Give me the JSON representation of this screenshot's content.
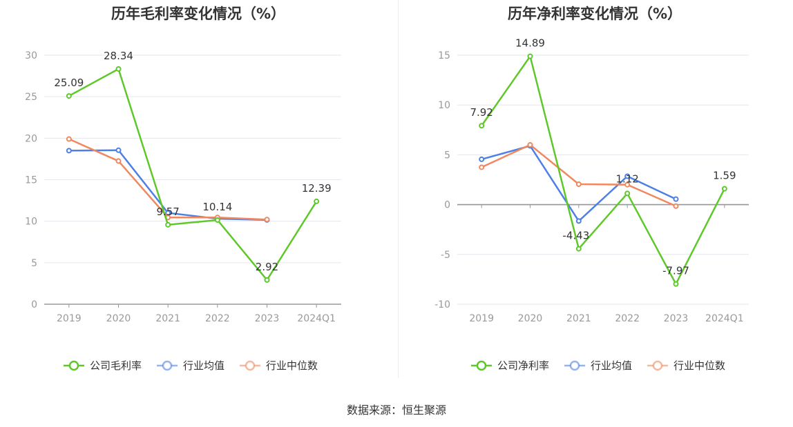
{
  "source": "数据来源：恒生聚源",
  "colors": {
    "company": "#5ec82a",
    "avg": "#4d80e6",
    "median": "#f0885f",
    "axis": "#666666",
    "grid": "#e6e6ee"
  },
  "chart_data": [
    {
      "type": "line",
      "title": "历年毛利率变化情况（%）",
      "categories": [
        "2019",
        "2020",
        "2021",
        "2022",
        "2023",
        "2024Q1"
      ],
      "ylim": [
        0,
        30
      ],
      "yticks": [
        0,
        5,
        10,
        15,
        20,
        25,
        30
      ],
      "grid": true,
      "legend_position": "bottom",
      "series": [
        {
          "name": "公司毛利率",
          "key": "company",
          "values": [
            25.09,
            28.34,
            9.57,
            10.14,
            2.92,
            12.39
          ],
          "labels": [
            "25.09",
            "28.34",
            "9.57",
            "10.14",
            "2.92",
            "12.39"
          ]
        },
        {
          "name": "行业均值",
          "key": "avg",
          "values": [
            18.5,
            18.55,
            11.0,
            10.3,
            10.15,
            null
          ]
        },
        {
          "name": "行业中位数",
          "key": "median",
          "values": [
            19.9,
            17.25,
            10.45,
            10.45,
            10.2,
            null
          ]
        }
      ]
    },
    {
      "type": "line",
      "title": "历年净利率变化情况（%）",
      "categories": [
        "2019",
        "2020",
        "2021",
        "2022",
        "2023",
        "2024Q1"
      ],
      "ylim": [
        -10,
        15
      ],
      "yticks": [
        -10,
        -5,
        0,
        5,
        10,
        15
      ],
      "grid": true,
      "legend_position": "bottom",
      "series": [
        {
          "name": "公司净利率",
          "key": "company",
          "values": [
            7.92,
            14.89,
            -4.43,
            1.12,
            -7.97,
            1.59
          ],
          "labels": [
            "7.92",
            "14.89",
            "-4.43",
            "1.12",
            "-7.97",
            "1.59"
          ]
        },
        {
          "name": "行业均值",
          "key": "avg",
          "values": [
            4.55,
            5.9,
            -1.65,
            2.85,
            0.55,
            null
          ]
        },
        {
          "name": "行业中位数",
          "key": "median",
          "values": [
            3.75,
            6.0,
            2.05,
            2.0,
            -0.15,
            null
          ]
        }
      ]
    }
  ]
}
